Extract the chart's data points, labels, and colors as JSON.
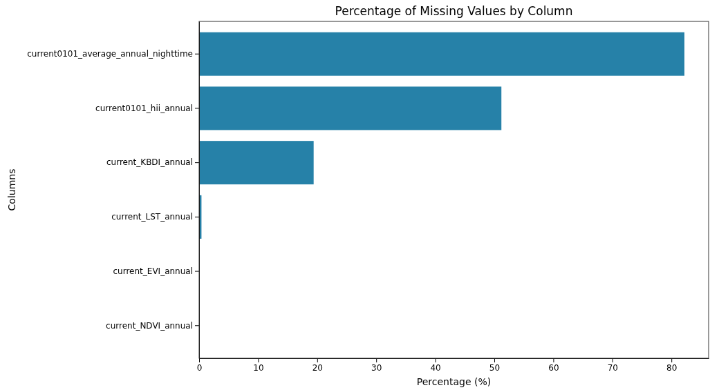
{
  "chart_data": {
    "type": "bar",
    "orientation": "horizontal",
    "title": "Percentage of Missing Values by Column",
    "xlabel": "Percentage (%)",
    "ylabel": "Columns",
    "categories": [
      "current0101_average_annual_nighttime",
      "current0101_hii_annual",
      "current_KBDI_annual",
      "current_LST_annual",
      "current_EVI_annual",
      "current_NDVI_annual"
    ],
    "values": [
      82.2,
      51.2,
      19.4,
      0.4,
      0,
      0
    ],
    "color": "#2681a8",
    "xlim": [
      0,
      86.3
    ],
    "xticks": [
      0,
      10,
      20,
      30,
      40,
      50,
      60,
      70,
      80
    ]
  }
}
